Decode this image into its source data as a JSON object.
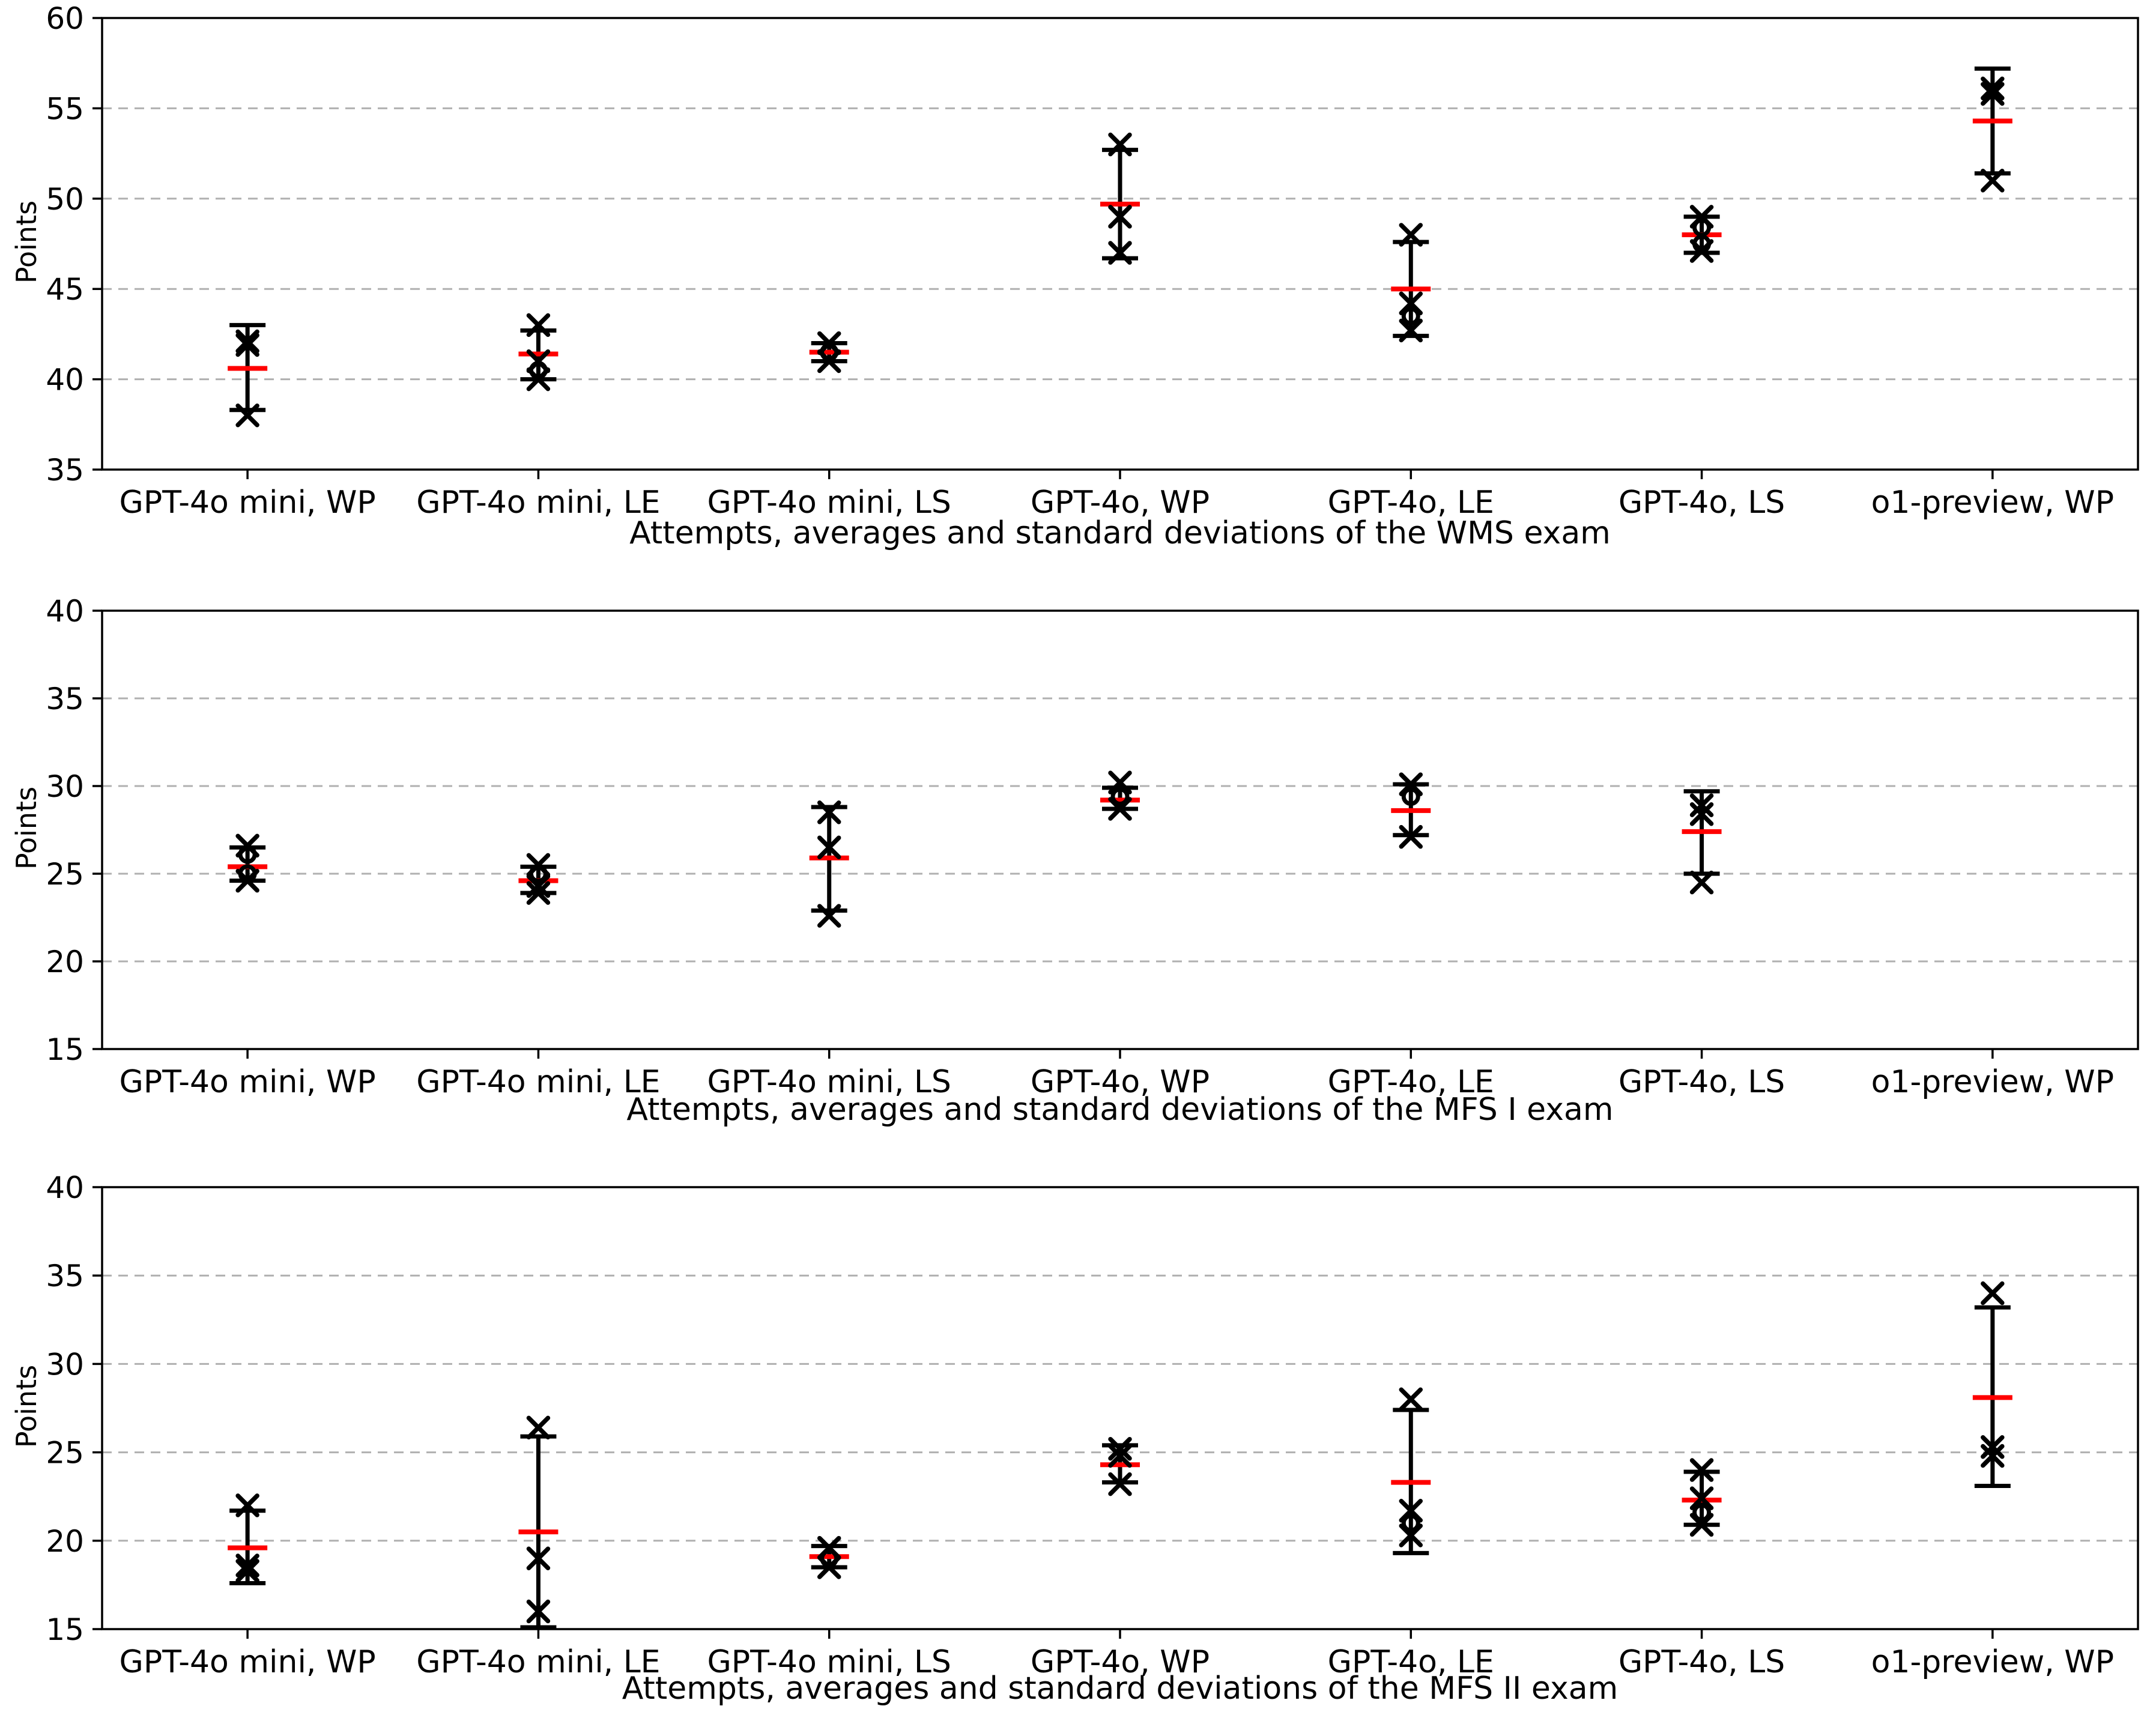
{
  "figure": {
    "background": "#ffffff",
    "marker_color": "#000000",
    "mean_line_color": "#ff0000",
    "grid_color": "#b0b0b0",
    "axis_color": "#000000"
  },
  "chart_data": [
    {
      "type": "scatter",
      "exam": "WMS",
      "xlabel": "Attempts, averages and standard deviations of the WMS exam",
      "ylabel": "Points",
      "ylim": [
        35,
        60
      ],
      "yticks": [
        35,
        40,
        45,
        50,
        55,
        60
      ],
      "grid": "horizontal-dashed",
      "legend": "none",
      "categories": [
        "GPT-4o mini, WP",
        "GPT-4o mini, LE",
        "GPT-4o mini, LS",
        "GPT-4o, WP",
        "GPT-4o, LE",
        "GPT-4o, LS",
        "o1-preview, WP"
      ],
      "series": [
        {
          "category": "GPT-4o mini, WP",
          "attempts": [
            {
              "v": 42.1,
              "marker": "x"
            },
            {
              "v": 41.9,
              "marker": "x"
            },
            {
              "v": 38.0,
              "marker": "x"
            }
          ],
          "mean": 40.6,
          "err_low": 38.3,
          "err_high": 43.0
        },
        {
          "category": "GPT-4o mini, LE",
          "attempts": [
            {
              "v": 43.0,
              "marker": "x"
            },
            {
              "v": 41.0,
              "marker": "x"
            },
            {
              "v": 40.5,
              "marker": "o"
            },
            {
              "v": 40.0,
              "marker": "x"
            }
          ],
          "mean": 41.4,
          "err_low": 40.0,
          "err_high": 42.7
        },
        {
          "category": "GPT-4o mini, LS",
          "attempts": [
            {
              "v": 42.0,
              "marker": "x"
            },
            {
              "v": 41.5,
              "marker": "o"
            },
            {
              "v": 41.0,
              "marker": "x"
            }
          ],
          "mean": 41.5,
          "err_low": 41.0,
          "err_high": 42.0
        },
        {
          "category": "GPT-4o, WP",
          "attempts": [
            {
              "v": 53.0,
              "marker": "x"
            },
            {
              "v": 49.0,
              "marker": "x"
            },
            {
              "v": 47.0,
              "marker": "x"
            }
          ],
          "mean": 49.7,
          "err_low": 46.7,
          "err_high": 52.7
        },
        {
          "category": "GPT-4o, LE",
          "attempts": [
            {
              "v": 48.0,
              "marker": "x"
            },
            {
              "v": 44.2,
              "marker": "x"
            },
            {
              "v": 43.5,
              "marker": "o"
            },
            {
              "v": 42.7,
              "marker": "x"
            }
          ],
          "mean": 45.0,
          "err_low": 42.4,
          "err_high": 47.6
        },
        {
          "category": "GPT-4o, LS",
          "attempts": [
            {
              "v": 49.0,
              "marker": "x"
            },
            {
              "v": 48.4,
              "marker": "o"
            },
            {
              "v": 47.5,
              "marker": "o"
            },
            {
              "v": 47.1,
              "marker": "x"
            }
          ],
          "mean": 48.0,
          "err_low": 47.0,
          "err_high": 49.0
        },
        {
          "category": "o1-preview, WP",
          "attempts": [
            {
              "v": 56.1,
              "marker": "x"
            },
            {
              "v": 55.8,
              "marker": "x"
            },
            {
              "v": 51.0,
              "marker": "x"
            }
          ],
          "mean": 54.3,
          "err_low": 51.4,
          "err_high": 57.2
        }
      ]
    },
    {
      "type": "scatter",
      "exam": "MFS I",
      "xlabel": "Attempts, averages and standard deviations of the MFS I exam",
      "ylabel": "Points",
      "ylim": [
        15,
        40
      ],
      "yticks": [
        15,
        20,
        25,
        30,
        35,
        40
      ],
      "grid": "horizontal-dashed",
      "legend": "none",
      "categories": [
        "GPT-4o mini, WP",
        "GPT-4o mini, LE",
        "GPT-4o mini, LS",
        "GPT-4o, WP",
        "GPT-4o, LE",
        "GPT-4o, LS",
        "o1-preview, WP"
      ],
      "series": [
        {
          "category": "GPT-4o mini, WP",
          "attempts": [
            {
              "v": 26.6,
              "marker": "x"
            },
            {
              "v": 26.1,
              "marker": "o"
            },
            {
              "v": 25.0,
              "marker": "o"
            },
            {
              "v": 24.6,
              "marker": "x"
            }
          ],
          "mean": 25.4,
          "err_low": 24.6,
          "err_high": 26.5
        },
        {
          "category": "GPT-4o mini, LE",
          "attempts": [
            {
              "v": 25.5,
              "marker": "x"
            },
            {
              "v": 25.0,
              "marker": "o"
            },
            {
              "v": 24.3,
              "marker": "x"
            },
            {
              "v": 23.9,
              "marker": "x"
            }
          ],
          "mean": 24.6,
          "err_low": 23.9,
          "err_high": 25.4
        },
        {
          "category": "GPT-4o mini, LS",
          "attempts": [
            {
              "v": 28.5,
              "marker": "x"
            },
            {
              "v": 26.5,
              "marker": "x"
            },
            {
              "v": 22.6,
              "marker": "x"
            }
          ],
          "mean": 25.9,
          "err_low": 22.9,
          "err_high": 28.8
        },
        {
          "category": "GPT-4o, WP",
          "attempts": [
            {
              "v": 30.2,
              "marker": "x"
            },
            {
              "v": 29.4,
              "marker": "o"
            },
            {
              "v": 28.7,
              "marker": "x"
            }
          ],
          "mean": 29.2,
          "err_low": 28.7,
          "err_high": 29.9
        },
        {
          "category": "GPT-4o, LE",
          "attempts": [
            {
              "v": 30.1,
              "marker": "x"
            },
            {
              "v": 29.4,
              "marker": "o"
            },
            {
              "v": 27.1,
              "marker": "x"
            }
          ],
          "mean": 28.6,
          "err_low": 27.2,
          "err_high": 30.1
        },
        {
          "category": "GPT-4o, LS",
          "attempts": [
            {
              "v": 28.9,
              "marker": "x"
            },
            {
              "v": 28.4,
              "marker": "x"
            },
            {
              "v": 24.5,
              "marker": "x"
            }
          ],
          "mean": 27.4,
          "err_low": 25.0,
          "err_high": 29.7
        },
        {
          "category": "o1-preview, WP",
          "attempts": [],
          "mean": null,
          "err_low": null,
          "err_high": null
        }
      ]
    },
    {
      "type": "scatter",
      "exam": "MFS II",
      "xlabel": "Attempts, averages and standard deviations of the MFS II exam",
      "ylabel": "Points",
      "ylim": [
        15,
        40
      ],
      "yticks": [
        15,
        20,
        25,
        30,
        35,
        40
      ],
      "grid": "horizontal-dashed",
      "legend": "none",
      "categories": [
        "GPT-4o mini, WP",
        "GPT-4o mini, LE",
        "GPT-4o mini, LS",
        "GPT-4o, WP",
        "GPT-4o, LE",
        "GPT-4o, LS",
        "o1-preview, WP"
      ],
      "series": [
        {
          "category": "GPT-4o mini, WP",
          "attempts": [
            {
              "v": 22.0,
              "marker": "x"
            },
            {
              "v": 18.6,
              "marker": "x"
            },
            {
              "v": 18.3,
              "marker": "x"
            }
          ],
          "mean": 19.6,
          "err_low": 17.6,
          "err_high": 21.7
        },
        {
          "category": "GPT-4o mini, LE",
          "attempts": [
            {
              "v": 26.4,
              "marker": "x"
            },
            {
              "v": 19.0,
              "marker": "x"
            },
            {
              "v": 16.0,
              "marker": "x"
            }
          ],
          "mean": 20.5,
          "err_low": 15.1,
          "err_high": 25.9
        },
        {
          "category": "GPT-4o mini, LS",
          "attempts": [
            {
              "v": 19.6,
              "marker": "x"
            },
            {
              "v": 19.0,
              "marker": "o"
            },
            {
              "v": 18.5,
              "marker": "x"
            }
          ],
          "mean": 19.1,
          "err_low": 18.5,
          "err_high": 19.7
        },
        {
          "category": "GPT-4o, WP",
          "attempts": [
            {
              "v": 25.2,
              "marker": "x"
            },
            {
              "v": 24.8,
              "marker": "x"
            },
            {
              "v": 23.2,
              "marker": "x"
            }
          ],
          "mean": 24.3,
          "err_low": 23.3,
          "err_high": 25.4
        },
        {
          "category": "GPT-4o, LE",
          "attempts": [
            {
              "v": 28.0,
              "marker": "x"
            },
            {
              "v": 21.7,
              "marker": "x"
            },
            {
              "v": 21.0,
              "marker": "o"
            },
            {
              "v": 20.3,
              "marker": "x"
            }
          ],
          "mean": 23.3,
          "err_low": 19.3,
          "err_high": 27.4
        },
        {
          "category": "GPT-4o, LS",
          "attempts": [
            {
              "v": 24.0,
              "marker": "x"
            },
            {
              "v": 22.4,
              "marker": "x"
            },
            {
              "v": 21.6,
              "marker": "o"
            },
            {
              "v": 20.9,
              "marker": "x"
            }
          ],
          "mean": 22.3,
          "err_low": 20.9,
          "err_high": 23.9
        },
        {
          "category": "o1-preview, WP",
          "attempts": [
            {
              "v": 34.0,
              "marker": "x"
            },
            {
              "v": 25.3,
              "marker": "x"
            },
            {
              "v": 24.8,
              "marker": "x"
            }
          ],
          "mean": 28.1,
          "err_low": 23.1,
          "err_high": 33.2
        }
      ]
    }
  ]
}
